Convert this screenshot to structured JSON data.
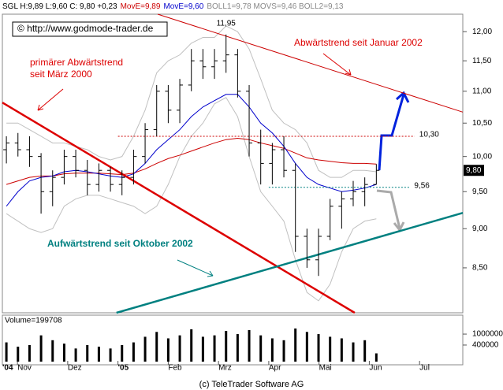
{
  "header": [
    {
      "text": "SGL H:9,89 L:9,60 C: 9,80 +0,23",
      "color": "#000000"
    },
    {
      "text": "MovE=9,89",
      "color": "#cc0000"
    },
    {
      "text": "MovE=9,60",
      "color": "#0000cc"
    },
    {
      "text": "BOLL1=9,78 MOVS=9,46 BOLL2=9,13",
      "color": "#888888"
    }
  ],
  "copyright": "© http://www.godmode-trader.de",
  "footer": "(c) TeleTrader Software AG",
  "chart_data": [
    {
      "type": "ohlc",
      "x": [
        -0.22,
        0.01,
        0.24,
        0.47,
        0.7,
        0.93,
        1.16,
        1.39,
        1.62,
        1.85,
        2.08,
        2.31,
        2.54,
        2.77,
        3.0,
        3.23,
        3.46,
        3.69,
        3.92,
        4.15,
        4.38,
        4.61,
        4.84,
        5.07,
        5.3,
        5.53,
        5.76,
        5.99,
        6.22,
        6.45,
        6.68,
        6.91,
        7.14
      ],
      "open": [
        10.1,
        10.2,
        10.1,
        10.0,
        9.5,
        9.7,
        10.0,
        9.8,
        9.6,
        9.8,
        9.6,
        9.7,
        10.0,
        10.4,
        11.0,
        10.7,
        11.1,
        11.5,
        11.4,
        11.5,
        11.6,
        11.0,
        10.2,
        9.9,
        10.1,
        9.8,
        8.9,
        8.6,
        8.9,
        9.3,
        9.4,
        9.5,
        9.6
      ],
      "high": [
        10.3,
        10.35,
        10.3,
        10.05,
        9.8,
        10.1,
        10.1,
        9.95,
        9.9,
        9.85,
        9.8,
        10.1,
        10.5,
        11.1,
        11.1,
        11.2,
        11.7,
        11.7,
        11.7,
        11.95,
        11.7,
        11.1,
        10.4,
        10.2,
        10.3,
        9.9,
        9.0,
        9.0,
        9.4,
        9.5,
        9.65,
        9.7,
        9.89
      ],
      "low": [
        9.9,
        10.0,
        9.85,
        9.2,
        9.3,
        9.6,
        9.7,
        9.45,
        9.5,
        9.5,
        9.45,
        9.6,
        9.9,
        10.3,
        10.5,
        10.5,
        11.0,
        11.2,
        11.2,
        11.3,
        10.9,
        10.0,
        9.6,
        9.6,
        9.7,
        8.7,
        8.5,
        8.4,
        8.85,
        9.0,
        9.3,
        9.3,
        9.6
      ],
      "close": [
        10.2,
        10.1,
        10.0,
        9.5,
        9.7,
        10.0,
        9.8,
        9.6,
        9.8,
        9.6,
        9.7,
        10.0,
        10.4,
        11.0,
        10.7,
        11.1,
        11.5,
        11.4,
        11.5,
        11.6,
        11.0,
        10.2,
        9.9,
        10.1,
        9.8,
        8.9,
        8.6,
        8.9,
        9.3,
        9.4,
        9.5,
        9.6,
        9.8
      ],
      "series": [
        {
          "color": "#c0c0c0",
          "values": [
            10.5,
            10.5,
            10.4,
            10.3,
            10.2,
            10.2,
            10.15,
            10.1,
            10.0,
            9.95,
            10.0,
            10.3,
            10.7,
            11.3,
            11.5,
            11.6,
            11.8,
            11.9,
            11.9,
            12.1,
            12.0,
            11.7,
            11.2,
            10.7,
            10.5,
            10.4,
            10.2,
            9.8,
            9.7,
            9.7,
            9.8,
            9.8,
            9.78
          ]
        },
        {
          "color": "#c0c0c0",
          "values": [
            9.2,
            9.1,
            9.0,
            8.95,
            9.0,
            9.3,
            9.4,
            9.45,
            9.45,
            9.4,
            9.35,
            9.3,
            9.2,
            9.3,
            9.6,
            10.0,
            10.3,
            10.5,
            10.8,
            10.9,
            10.6,
            10.0,
            9.5,
            9.3,
            9.1,
            8.6,
            8.2,
            8.1,
            8.3,
            8.7,
            9.0,
            9.1,
            9.13
          ]
        },
        {
          "color": "#cc0000",
          "values": [
            9.6,
            9.65,
            9.7,
            9.72,
            9.72,
            9.75,
            9.76,
            9.76,
            9.76,
            9.75,
            9.74,
            9.76,
            9.82,
            9.9,
            9.97,
            10.02,
            10.08,
            10.14,
            10.2,
            10.25,
            10.27,
            10.25,
            10.2,
            10.16,
            10.12,
            10.05,
            9.98,
            9.95,
            9.93,
            9.91,
            9.9,
            9.9,
            9.89
          ]
        },
        {
          "color": "#0000cc",
          "values": [
            9.3,
            9.5,
            9.65,
            9.7,
            9.72,
            9.78,
            9.8,
            9.78,
            9.75,
            9.72,
            9.7,
            9.75,
            9.9,
            10.1,
            10.25,
            10.4,
            10.6,
            10.75,
            10.85,
            10.95,
            10.95,
            10.75,
            10.5,
            10.35,
            10.15,
            9.9,
            9.7,
            9.6,
            9.55,
            9.5,
            9.52,
            9.55,
            9.6
          ]
        }
      ],
      "log": true,
      "xlim": [
        -0.3,
        8.86
      ],
      "ylim": [
        7.96,
        12.31
      ],
      "yticks": [
        {
          "value": 8.5,
          "label": "8,50"
        },
        {
          "value": 9,
          "label": "9,00"
        },
        {
          "value": 9.5,
          "label": "9,50"
        },
        {
          "value": 10,
          "label": "10,00"
        },
        {
          "value": 10.5,
          "label": "10,50"
        },
        {
          "value": 11,
          "label": "11,00"
        },
        {
          "value": 11.5,
          "label": "11,50"
        },
        {
          "value": 12,
          "label": "12,00"
        }
      ],
      "xticks": [
        {
          "value": 0,
          "label": "Nov"
        },
        {
          "value": 1,
          "label": "Dez"
        },
        {
          "value": 2,
          "label": "'05"
        },
        {
          "value": 3,
          "label": "Feb"
        },
        {
          "value": 4,
          "label": "Mrz"
        },
        {
          "value": 5,
          "label": "Apr"
        },
        {
          "value": 6,
          "label": "Mai"
        },
        {
          "value": 7,
          "label": "Jun"
        },
        {
          "value": 8,
          "label": "Jul"
        }
      ],
      "start_label": "'04",
      "trendlines": [
        {
          "color": "#cc0000",
          "width": 1,
          "points": [
            [
              2.79,
              12.31
            ],
            [
              8.86,
              10.67
            ]
          ]
        },
        {
          "color": "#dd0000",
          "width": 2.5,
          "points": [
            [
              -0.3,
              10.82
            ],
            [
              6.71,
              7.96
            ]
          ]
        },
        {
          "color": "#008080",
          "width": 2.5,
          "points": [
            [
              1.97,
              7.96
            ],
            [
              8.86,
              9.21
            ]
          ]
        }
      ],
      "levels": [
        {
          "value": 10.3,
          "label": "10,30",
          "color": "#cc0000",
          "from": 2.0,
          "to": 7.9
        },
        {
          "value": 9.56,
          "label": "9,56",
          "color": "#008080",
          "from": 5.0,
          "to": 7.8
        }
      ],
      "peak": {
        "x": 4.15,
        "value": 11.95,
        "label": "11,95"
      },
      "last": {
        "value": 9.8,
        "label": "9,80"
      },
      "annotations": [
        {
          "lines": [
            "primärer Abwärtstrend",
            "seit März 2000"
          ],
          "color": "#dd0000"
        },
        {
          "lines": [
            "Abwärtstrend seit Januar 2002"
          ],
          "color": "#dd0000"
        },
        {
          "lines": [
            "Aufwärtstrend seit Oktober 2002"
          ],
          "color": "#008080"
        }
      ]
    },
    {
      "type": "volume",
      "label": "Volume=199708",
      "values": [
        500000,
        350000,
        400000,
        900000,
        600000,
        450000,
        300000,
        400000,
        350000,
        300000,
        400000,
        500000,
        800000,
        1200000,
        700000,
        900000,
        1500000,
        800000,
        900000,
        1300000,
        1000000,
        1400000,
        900000,
        700000,
        600000,
        1600000,
        1200000,
        1000000,
        800000,
        700000,
        500000,
        600000,
        199708
      ],
      "log": true,
      "ylim": [
        100000,
        4000000
      ],
      "yticks": [
        400000,
        1000000
      ],
      "color": "#000000"
    }
  ]
}
